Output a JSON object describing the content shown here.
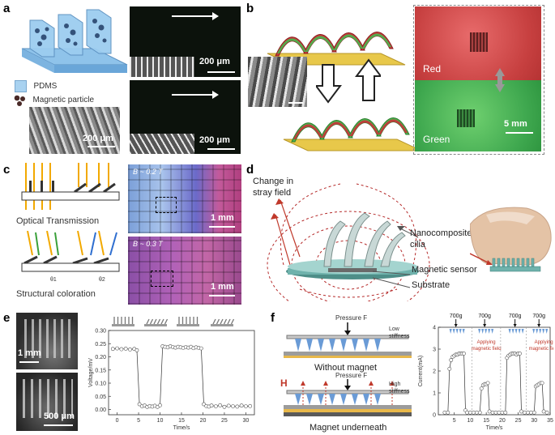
{
  "panels": {
    "a": {
      "label": "a",
      "legend_pdms": "PDMS",
      "legend_particle": "Magnetic particle",
      "sem_scale": "200 μm",
      "top_scale": "200 μm",
      "bottom_scale": "200 μm"
    },
    "b": {
      "label": "b",
      "red_label": "Red",
      "green_label": "Green",
      "scale": "5 mm"
    },
    "c": {
      "label": "c",
      "optical_transmission": "Optical Transmission",
      "structural_coloration": "Structural coloration",
      "theta1": "θ1",
      "theta2": "θ2",
      "field_top": "B ~ 0.2 T",
      "field_bottom": "B ~ 0.3 T",
      "scale_top": "1 mm",
      "scale_bottom": "1 mm"
    },
    "d": {
      "label": "d",
      "stray_field": "Change in\nstray field",
      "cilia": "Nanocomposite\ncilia",
      "sensor": "Magnetic sensor",
      "substrate": "Substrate"
    },
    "e": {
      "label": "e",
      "scale_top": "1 mm",
      "scale_bottom": "500 μm"
    },
    "f": {
      "label": "f",
      "pressure_top": "Pressure F",
      "low_stiffness": "Low\nstiffness",
      "without_magnet": "Without magnet",
      "h_label": "H",
      "pressure_bottom": "Pressure F",
      "high_stiffness": "High\nstiffness",
      "magnet_underneath": "Magnet underneath"
    }
  },
  "chart_data": [
    {
      "type": "line",
      "panel": "e",
      "xlabel": "Time/s",
      "ylabel": "Voltage/mV",
      "xlim": [
        -2,
        32
      ],
      "ylim": [
        -0.02,
        0.3
      ],
      "xticks": [
        0,
        5,
        10,
        15,
        20,
        25,
        30
      ],
      "yticks": [
        0.0,
        0.05,
        0.1,
        0.15,
        0.2,
        0.25,
        0.3
      ],
      "series": [
        {
          "x": [
            -1,
            0,
            1,
            2,
            3,
            4,
            4.6,
            5.2,
            5.8,
            6.4,
            7,
            7.6,
            8.2,
            8.8,
            9.4,
            10,
            10.6,
            11.2,
            11.8,
            12.4,
            13,
            13.6,
            14.2,
            14.8,
            15.4,
            16,
            16.6,
            17.2,
            17.8,
            18.4,
            19,
            19.6,
            20.2,
            20.8,
            21.4,
            22,
            23,
            24,
            25,
            26,
            27,
            28,
            29,
            30,
            31
          ],
          "y": [
            0.23,
            0.232,
            0.229,
            0.231,
            0.228,
            0.23,
            0.225,
            0.02,
            0.012,
            0.015,
            0.01,
            0.013,
            0.011,
            0.014,
            0.01,
            0.016,
            0.24,
            0.238,
            0.236,
            0.24,
            0.237,
            0.235,
            0.238,
            0.236,
            0.234,
            0.237,
            0.235,
            0.238,
            0.233,
            0.236,
            0.234,
            0.232,
            0.02,
            0.013,
            0.011,
            0.015,
            0.012,
            0.016,
            0.01,
            0.014,
            0.012,
            0.011,
            0.015,
            0.012,
            0.013
          ]
        }
      ]
    },
    {
      "type": "line",
      "panel": "f",
      "xlabel": "Time/s",
      "ylabel": "Current(mA)",
      "xlim": [
        0,
        35
      ],
      "ylim": [
        0,
        4
      ],
      "xticks": [
        5,
        10,
        15,
        20,
        25,
        30,
        35
      ],
      "yticks": [
        0,
        1,
        2,
        3,
        4
      ],
      "annotations": [
        "700g",
        "700g",
        "700g",
        "700g",
        "Applying\nmagnetic field",
        "Applying\nmagnetic field"
      ],
      "series": [
        {
          "x": [
            2,
            3,
            3.5,
            4,
            4.5,
            5,
            5.5,
            6,
            6.5,
            7,
            7.5,
            8,
            8.5,
            9,
            10,
            11,
            12,
            13,
            13.5,
            14,
            14.5,
            15,
            15.5,
            16,
            17,
            18,
            19,
            20,
            21,
            21.5,
            22,
            22.5,
            23,
            23.5,
            24,
            24.5,
            25,
            25.5,
            26,
            27,
            28,
            29,
            30,
            30.5,
            31,
            31.5,
            32,
            32.5,
            33,
            34
          ],
          "y": [
            0.1,
            0.1,
            2.1,
            2.5,
            2.65,
            2.7,
            2.75,
            2.75,
            2.8,
            2.8,
            2.8,
            2.8,
            0.2,
            0.1,
            0.1,
            0.1,
            0.1,
            0.1,
            1.2,
            1.35,
            1.4,
            1.4,
            1.45,
            0.15,
            0.1,
            0.1,
            0.1,
            0.1,
            0.1,
            2.6,
            2.7,
            2.75,
            2.8,
            2.8,
            2.8,
            2.75,
            2.8,
            2.8,
            0.15,
            0.1,
            0.1,
            0.1,
            0.1,
            1.3,
            1.35,
            1.4,
            1.45,
            1.45,
            0.15,
            0.1
          ]
        }
      ]
    }
  ]
}
